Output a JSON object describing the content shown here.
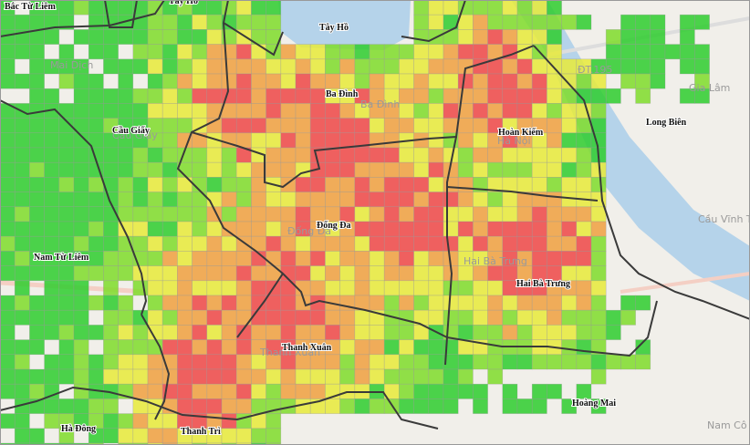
{
  "map": {
    "districts": [
      {
        "label": "Bắc Từ Liêm"
      },
      {
        "label": "Tây Hồ"
      },
      {
        "label": "Tây Hồ"
      },
      {
        "label": "Ba Đình"
      },
      {
        "label": "Hoàn Kiếm"
      },
      {
        "label": "Cầu Giấy"
      },
      {
        "label": "Long Biên"
      },
      {
        "label": "Đống Đa"
      },
      {
        "label": "Nam Từ Liêm"
      },
      {
        "label": "Hai Bà Trưng"
      },
      {
        "label": "Thanh Xuân"
      },
      {
        "label": "Hoàng Mai"
      },
      {
        "label": "Hà Đông"
      },
      {
        "label": "Thanh Trì"
      }
    ],
    "basemap_labels": [
      {
        "label": "Mai Dịch"
      },
      {
        "label": "Cầu Giấy"
      },
      {
        "label": "Ba Đình"
      },
      {
        "label": "Hà Nội"
      },
      {
        "label": "Đống Đa"
      },
      {
        "label": "Hai Bà Trưng"
      },
      {
        "label": "Thanh Xuân"
      },
      {
        "label": "ĐT.195"
      },
      {
        "label": "Gia Lâm"
      },
      {
        "label": "Cầu Vĩnh Tuy"
      },
      {
        "label": "Nam Cô"
      }
    ]
  }
}
